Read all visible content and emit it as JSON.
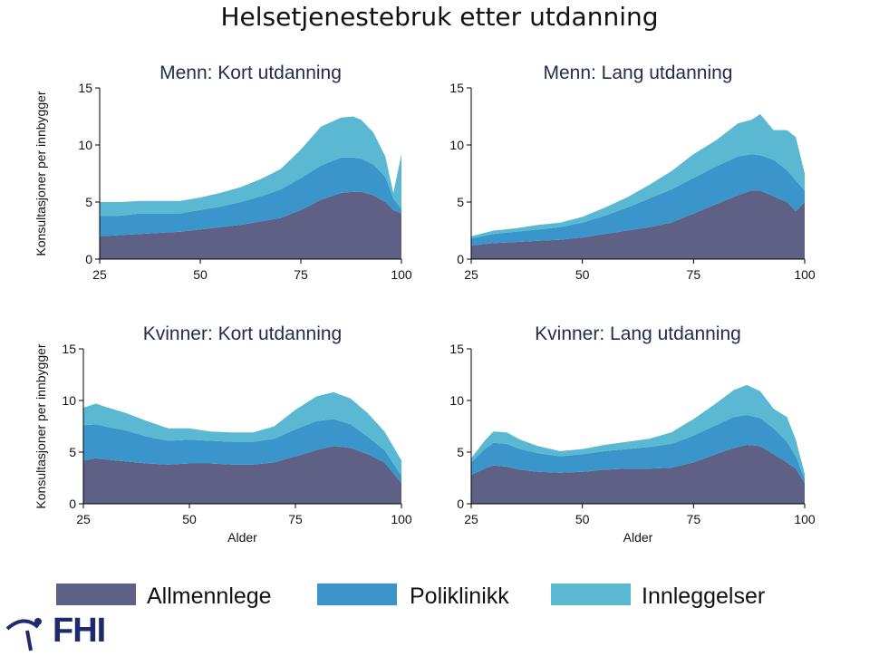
{
  "title": "Helsetjenestebruk etter utdanning",
  "logo_text": "FHI",
  "colors": {
    "allmennlege": "#5e6086",
    "poliklinikk": "#3a95cb",
    "innleggelser": "#5ab8d2",
    "title_blue": "#1f2d4e",
    "logo_blue": "#1e2a6e"
  },
  "legend": [
    "Allmennlege",
    "Poliklinikk",
    "Innleggelser"
  ],
  "chart_data": [
    {
      "type": "area",
      "stacked": true,
      "title": "Menn: Kort utdanning",
      "ylabel": "Konsultasjoner per innbygger",
      "xlabel": "",
      "xlim": [
        25,
        100
      ],
      "ylim": [
        0,
        15
      ],
      "xticks": [
        25,
        50,
        75,
        100
      ],
      "yticks": [
        0,
        5,
        10,
        15
      ],
      "x": [
        25,
        30,
        35,
        40,
        45,
        50,
        55,
        60,
        65,
        70,
        75,
        80,
        85,
        88,
        90,
        93,
        96,
        98,
        100
      ],
      "series": [
        {
          "name": "Allmennlege",
          "values": [
            2.0,
            2.1,
            2.2,
            2.3,
            2.4,
            2.6,
            2.8,
            3.0,
            3.3,
            3.6,
            4.3,
            5.2,
            5.8,
            5.9,
            5.9,
            5.6,
            5.0,
            4.3,
            4.0
          ]
        },
        {
          "name": "Poliklinikk",
          "values": [
            1.8,
            1.7,
            1.8,
            1.7,
            1.6,
            1.7,
            1.8,
            2.0,
            2.2,
            2.5,
            2.8,
            3.0,
            3.1,
            3.0,
            2.9,
            2.7,
            2.2,
            1.0,
            0.4
          ]
        },
        {
          "name": "Innleggelser",
          "values": [
            1.2,
            1.2,
            1.1,
            1.1,
            1.1,
            1.1,
            1.2,
            1.3,
            1.5,
            1.8,
            2.5,
            3.4,
            3.5,
            3.6,
            3.4,
            2.8,
            1.8,
            0.5,
            4.8
          ]
        }
      ]
    },
    {
      "type": "area",
      "stacked": true,
      "title": "Menn: Lang utdanning",
      "ylabel": "",
      "xlabel": "",
      "xlim": [
        25,
        100
      ],
      "ylim": [
        0,
        15
      ],
      "xticks": [
        25,
        50,
        75,
        100
      ],
      "yticks": [
        0,
        5,
        10,
        15
      ],
      "x": [
        25,
        30,
        35,
        40,
        45,
        50,
        55,
        60,
        65,
        70,
        75,
        80,
        85,
        88,
        90,
        93,
        96,
        98,
        100
      ],
      "series": [
        {
          "name": "Allmennlege",
          "values": [
            1.2,
            1.4,
            1.5,
            1.6,
            1.7,
            1.9,
            2.2,
            2.5,
            2.8,
            3.2,
            4.0,
            4.8,
            5.6,
            6.0,
            6.0,
            5.5,
            5.0,
            4.2,
            5.0
          ]
        },
        {
          "name": "Poliklinikk",
          "values": [
            0.6,
            0.8,
            0.9,
            1.0,
            1.1,
            1.3,
            1.6,
            2.0,
            2.5,
            2.9,
            3.1,
            3.3,
            3.4,
            3.2,
            3.1,
            3.2,
            2.8,
            2.7,
            1.0
          ]
        },
        {
          "name": "Innleggelser",
          "values": [
            0.2,
            0.3,
            0.3,
            0.4,
            0.4,
            0.5,
            0.7,
            0.9,
            1.2,
            1.6,
            2.1,
            2.3,
            2.9,
            3.0,
            3.6,
            2.6,
            3.5,
            3.8,
            1.5
          ]
        }
      ]
    },
    {
      "type": "area",
      "stacked": true,
      "title": "Kvinner: Kort utdanning",
      "ylabel": "Konsultasjoner per innbygger",
      "xlabel": "Alder",
      "xlim": [
        25,
        100
      ],
      "ylim": [
        0,
        15
      ],
      "xticks": [
        25,
        50,
        75,
        100
      ],
      "yticks": [
        0,
        5,
        10,
        15
      ],
      "x": [
        25,
        28,
        30,
        35,
        40,
        45,
        50,
        55,
        60,
        65,
        70,
        75,
        80,
        84,
        88,
        92,
        96,
        100
      ],
      "series": [
        {
          "name": "Allmennlege",
          "values": [
            4.2,
            4.4,
            4.3,
            4.1,
            3.9,
            3.8,
            3.9,
            3.9,
            3.8,
            3.8,
            4.0,
            4.6,
            5.2,
            5.6,
            5.4,
            4.8,
            4.0,
            2.0
          ]
        },
        {
          "name": "Poliklinikk",
          "values": [
            3.4,
            3.3,
            3.2,
            3.0,
            2.6,
            2.3,
            2.3,
            2.2,
            2.2,
            2.2,
            2.3,
            2.6,
            2.8,
            2.6,
            2.3,
            1.7,
            1.2,
            0.7
          ]
        },
        {
          "name": "Innleggelser",
          "values": [
            1.7,
            2.0,
            1.9,
            1.7,
            1.5,
            1.2,
            1.1,
            0.9,
            0.9,
            0.9,
            1.2,
            1.9,
            2.4,
            2.6,
            2.5,
            2.3,
            1.8,
            1.5
          ]
        }
      ]
    },
    {
      "type": "area",
      "stacked": true,
      "title": "Kvinner: Lang utdanning",
      "ylabel": "",
      "xlabel": "Alder",
      "xlim": [
        25,
        100
      ],
      "ylim": [
        0,
        15
      ],
      "xticks": [
        25,
        50,
        75,
        100
      ],
      "yticks": [
        0,
        5,
        10,
        15
      ],
      "x": [
        25,
        28,
        30,
        33,
        36,
        40,
        45,
        50,
        55,
        60,
        65,
        70,
        75,
        80,
        84,
        87,
        90,
        93,
        96,
        98,
        100
      ],
      "series": [
        {
          "name": "Allmennlege",
          "values": [
            2.8,
            3.4,
            3.7,
            3.6,
            3.3,
            3.1,
            3.0,
            3.1,
            3.3,
            3.4,
            3.4,
            3.5,
            4.0,
            4.8,
            5.4,
            5.7,
            5.6,
            4.8,
            4.0,
            3.4,
            2.0
          ]
        },
        {
          "name": "Poliklinikk",
          "values": [
            1.2,
            1.9,
            2.2,
            2.2,
            2.0,
            1.8,
            1.6,
            1.7,
            1.8,
            1.9,
            2.1,
            2.3,
            2.6,
            2.8,
            3.0,
            2.9,
            2.7,
            2.5,
            2.0,
            1.2,
            0.4
          ]
        },
        {
          "name": "Innleggelser",
          "values": [
            0.4,
            0.8,
            1.1,
            1.1,
            0.9,
            0.7,
            0.5,
            0.5,
            0.6,
            0.7,
            0.8,
            1.1,
            1.6,
            2.1,
            2.6,
            2.9,
            2.6,
            1.9,
            2.4,
            1.6,
            0.5
          ]
        }
      ]
    }
  ]
}
